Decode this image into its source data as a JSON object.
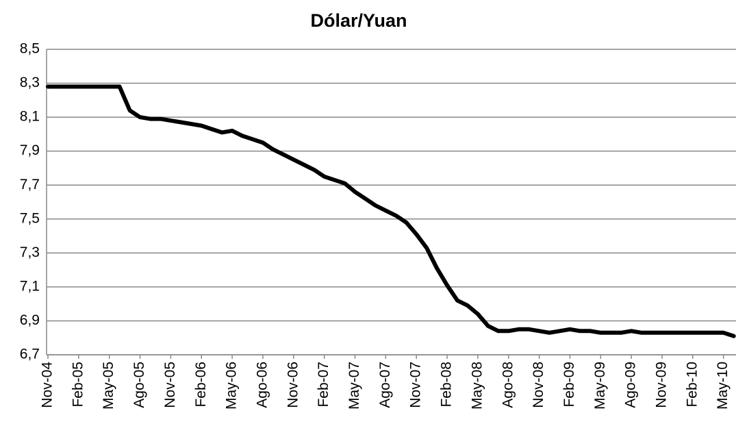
{
  "chart_data": {
    "type": "line",
    "title": "Dólar/Yuan",
    "categories": [
      "Nov-04",
      null,
      null,
      "Feb-05",
      null,
      null,
      "May-05",
      null,
      null,
      "Ago-05",
      null,
      null,
      "Nov-05",
      null,
      null,
      "Feb-06",
      null,
      null,
      "May-06",
      null,
      null,
      "Ago-06",
      null,
      null,
      "Nov-06",
      null,
      null,
      "Feb-07",
      null,
      null,
      "May-07",
      null,
      null,
      "Ago-07",
      null,
      null,
      "Nov-07",
      null,
      null,
      "Feb-08",
      null,
      null,
      "May-08",
      null,
      null,
      "Ago-08",
      null,
      null,
      "Nov-08",
      null,
      null,
      "Feb-09",
      null,
      null,
      "May-09",
      null,
      null,
      "Ago-09",
      null,
      null,
      "Nov-09",
      null,
      null,
      "Feb-10",
      null,
      null,
      "May-10",
      null
    ],
    "values": [
      8.28,
      8.28,
      8.28,
      8.28,
      8.28,
      8.28,
      8.28,
      8.28,
      8.14,
      8.1,
      8.09,
      8.09,
      8.08,
      8.07,
      8.06,
      8.05,
      8.03,
      8.01,
      8.02,
      7.99,
      7.97,
      7.95,
      7.91,
      7.88,
      7.85,
      7.82,
      7.79,
      7.75,
      7.73,
      7.71,
      7.66,
      7.62,
      7.58,
      7.55,
      7.52,
      7.48,
      7.41,
      7.33,
      7.21,
      7.11,
      7.02,
      6.99,
      6.94,
      6.87,
      6.84,
      6.84,
      6.85,
      6.85,
      6.84,
      6.83,
      6.84,
      6.85,
      6.84,
      6.84,
      6.83,
      6.83,
      6.83,
      6.84,
      6.83,
      6.83,
      6.83,
      6.83,
      6.83,
      6.83,
      6.83,
      6.83,
      6.83,
      6.81
    ],
    "color": "#000000",
    "ylim": [
      6.7,
      8.5
    ],
    "yticks": [
      {
        "value": 6.7,
        "label": "6,7"
      },
      {
        "value": 6.9,
        "label": "6,9"
      },
      {
        "value": 7.1,
        "label": "7,1"
      },
      {
        "value": 7.3,
        "label": "7,3"
      },
      {
        "value": 7.5,
        "label": "7,5"
      },
      {
        "value": 7.7,
        "label": "7,7"
      },
      {
        "value": 7.9,
        "label": "7,9"
      },
      {
        "value": 8.1,
        "label": "8,1"
      },
      {
        "value": 8.3,
        "label": "8,3"
      },
      {
        "value": 8.5,
        "label": "8,5"
      }
    ],
    "grid": true
  }
}
